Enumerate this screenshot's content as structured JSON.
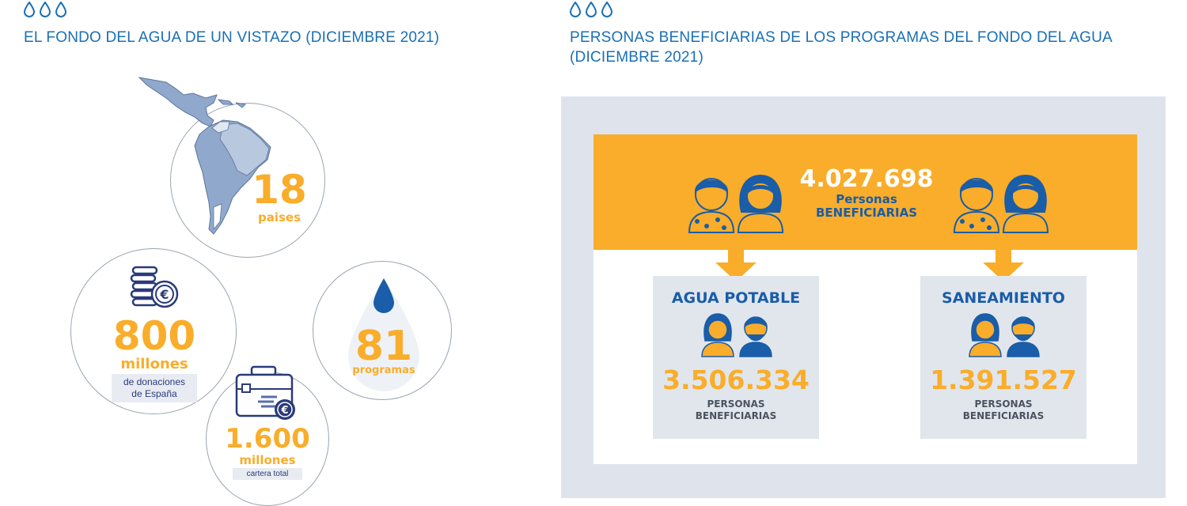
{
  "colors": {
    "blue": "#1a6fb5",
    "orange": "#f9ad2a",
    "navy": "#2a3a7a",
    "panel": "#dfe4ec"
  },
  "left": {
    "title": "EL FONDO DEL AGUA DE UN VISTAZO (DICIEMBRE 2021)",
    "countries": {
      "value": "18",
      "label": "paises"
    },
    "donations": {
      "value": "800",
      "label": "millones",
      "note_line1": "de donaciones",
      "note_line2": "de España",
      "icon": "euro-coins-icon"
    },
    "programs": {
      "value": "81",
      "label": "programas",
      "icon": "water-drop-icon"
    },
    "portfolio": {
      "value": "1.600",
      "label": "millones",
      "note": "cartera total",
      "icon": "euro-briefcase-icon"
    }
  },
  "right": {
    "title_line1": "PERSONAS BENEFICIARIAS DE LOS PROGRAMAS DEL FONDO DEL AGUA",
    "title_line2": "(DICIEMBRE 2021)",
    "total": {
      "value": "4.027.698",
      "label_line1": "Personas",
      "label_line2": "BENEFICIARIAS"
    },
    "water": {
      "title": "AGUA POTABLE",
      "value": "3.506.334",
      "label_line1": "PERSONAS",
      "label_line2": "BENEFICIARIAS"
    },
    "sanitation": {
      "title": "SANEAMIENTO",
      "value": "1.391.527",
      "label_line1": "PERSONAS",
      "label_line2": "BENEFICIARIAS"
    }
  }
}
